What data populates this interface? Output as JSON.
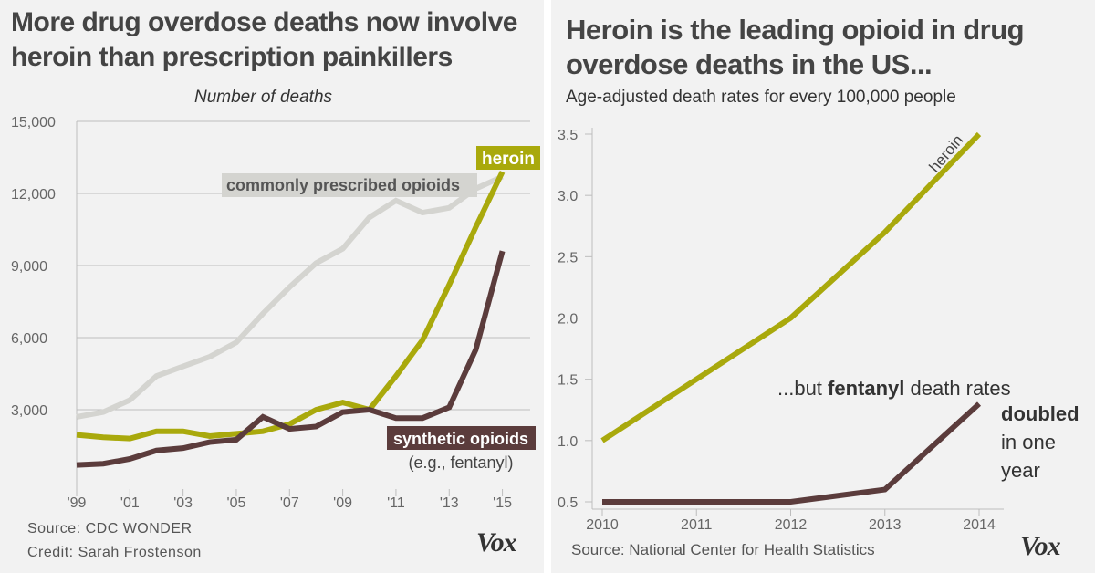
{
  "left": {
    "title_line1": "More drug overdose deaths now involve",
    "title_line2": "heroin than prescription painkillers",
    "subtitle": "Number of deaths",
    "source": "Source: CDC WONDER",
    "credit": "Credit: Sarah Frostenson",
    "logo": "Vox"
  },
  "right": {
    "title_line1": "Heroin is the leading opioid in drug",
    "title_line2": "overdose deaths in the US...",
    "subtitle": "Age-adjusted death rates for every 100,000 people",
    "source": "Source: National Center for Health Statistics",
    "logo": "Vox"
  },
  "chart_data": [
    {
      "type": "line",
      "title": "More drug overdose deaths now involve heroin than prescription painkillers",
      "ylabel": "Number of deaths",
      "ylim": [
        0,
        15000
      ],
      "yticks": [
        3000,
        6000,
        9000,
        12000,
        15000
      ],
      "ytick_labels": [
        "3,000",
        "6,000",
        "9,000",
        "12,000",
        "15,000"
      ],
      "xticks": [
        1999,
        2001,
        2003,
        2005,
        2007,
        2009,
        2011,
        2013,
        2015
      ],
      "xtick_labels": [
        "'99",
        "'01",
        "'03",
        "'05",
        "'07",
        "'09",
        "'11",
        "'13",
        "'15"
      ],
      "x": [
        1999,
        2000,
        2001,
        2002,
        2003,
        2004,
        2005,
        2006,
        2007,
        2008,
        2009,
        2010,
        2011,
        2012,
        2013,
        2014,
        2015
      ],
      "grid": true,
      "series": [
        {
          "name": "commonly prescribed opioids",
          "color": "#d4d4d0",
          "values": [
            2700,
            2900,
            3400,
            4400,
            4800,
            5200,
            5800,
            7000,
            8100,
            9100,
            9700,
            11000,
            11700,
            11200,
            11400,
            12200,
            12700
          ]
        },
        {
          "name": "heroin",
          "color": "#a9a90c",
          "values": [
            1950,
            1850,
            1800,
            2100,
            2100,
            1900,
            2000,
            2100,
            2400,
            3000,
            3300,
            3000,
            4400,
            5900,
            8200,
            10600,
            12900
          ]
        },
        {
          "name": "synthetic opioids",
          "note": "(e.g., fentanyl)",
          "color": "#5b3c3c",
          "values": [
            700,
            750,
            950,
            1300,
            1400,
            1650,
            1750,
            2700,
            2200,
            2300,
            2900,
            3000,
            2650,
            2650,
            3100,
            5500,
            9600
          ]
        }
      ]
    },
    {
      "type": "line",
      "title": "Heroin is the leading opioid in drug overdose deaths in the US...",
      "ylabel": "Age-adjusted death rates for every 100,000 people",
      "ylim": [
        0.5,
        3.5
      ],
      "yticks": [
        0.5,
        1.0,
        1.5,
        2.0,
        2.5,
        3.0,
        3.5
      ],
      "ytick_labels": [
        "0.5",
        "1.0",
        "1.5",
        "2.0",
        "2.5",
        "3.0",
        "3.5"
      ],
      "x": [
        2010,
        2011,
        2012,
        2013,
        2014
      ],
      "xtick_labels": [
        "2010",
        "2011",
        "2012",
        "2013",
        "2014"
      ],
      "grid": false,
      "annotation": {
        "pre": "...but ",
        "bold": "fentanyl",
        "post": " death rates",
        "line2": "doubled",
        "line3": "in one",
        "line4": "year"
      },
      "series": [
        {
          "name": "heroin",
          "color": "#a9a90c",
          "values": [
            1.0,
            1.5,
            2.0,
            2.7,
            3.5
          ]
        },
        {
          "name": "fentanyl",
          "color": "#5b3c3c",
          "values": [
            0.5,
            0.5,
            0.5,
            0.6,
            1.3
          ]
        }
      ]
    }
  ]
}
